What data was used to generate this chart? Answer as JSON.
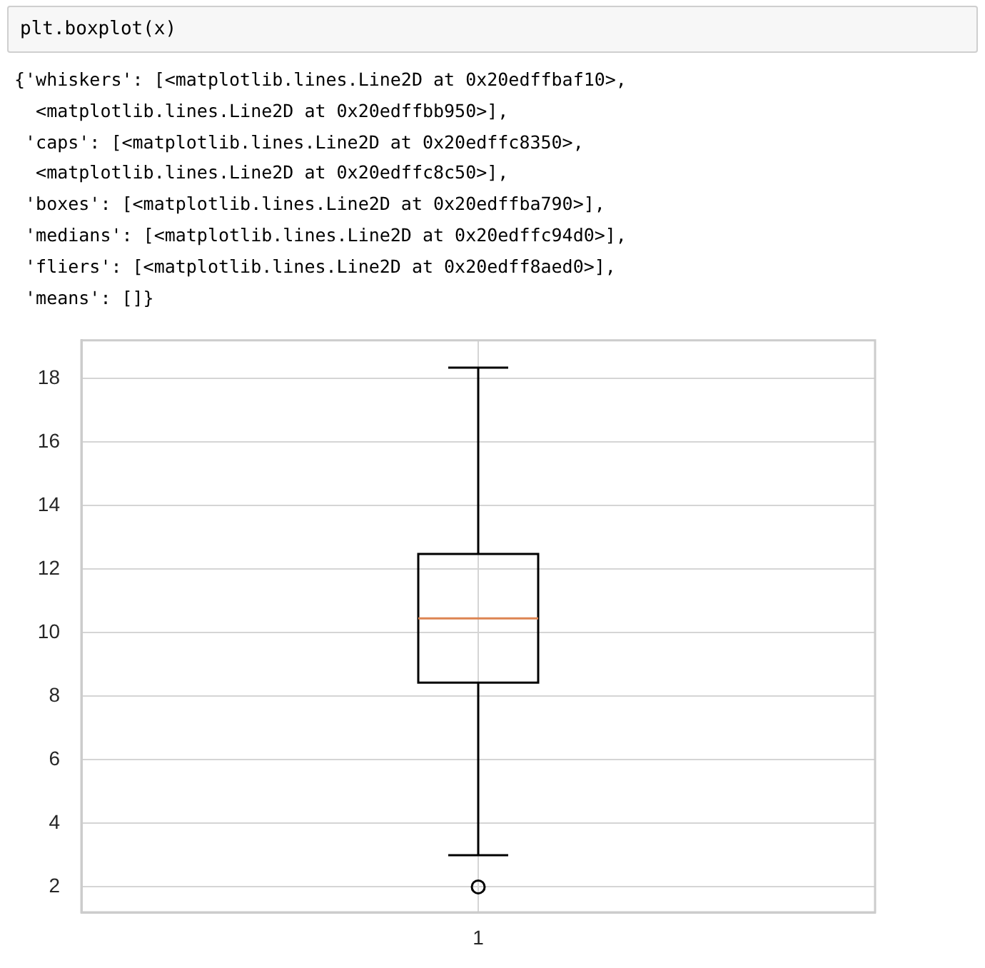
{
  "chart_data": {
    "type": "box",
    "categories": [
      "1"
    ],
    "boxes": [
      {
        "low": 3.0,
        "q1": 8.43,
        "median": 10.45,
        "q3": 12.48,
        "high": 18.34,
        "outliers": [
          2.0
        ]
      }
    ],
    "ylim": [
      1.2,
      19.2
    ],
    "yticks": [
      2,
      4,
      6,
      8,
      10,
      12,
      14,
      16,
      18
    ],
    "grid": true,
    "annotations": [
      "plt.boxplot(x)",
      "{'whiskers': [<matplotlib.lines.Line2D at 0x20edffbaf10>,",
      "  <matplotlib.lines.Line2D at 0x20edffbb950>],",
      " 'caps': [<matplotlib.lines.Line2D at 0x20edffc8350>,",
      "  <matplotlib.lines.Line2D at 0x20edffc8c50>],",
      " 'boxes': [<matplotlib.lines.Line2D at 0x20edffba790>],",
      " 'medians': [<matplotlib.lines.Line2D at 0x20edffc94d0>],",
      " 'fliers': [<matplotlib.lines.Line2D at 0x20edff8aed0>],",
      " 'means': []}"
    ]
  }
}
